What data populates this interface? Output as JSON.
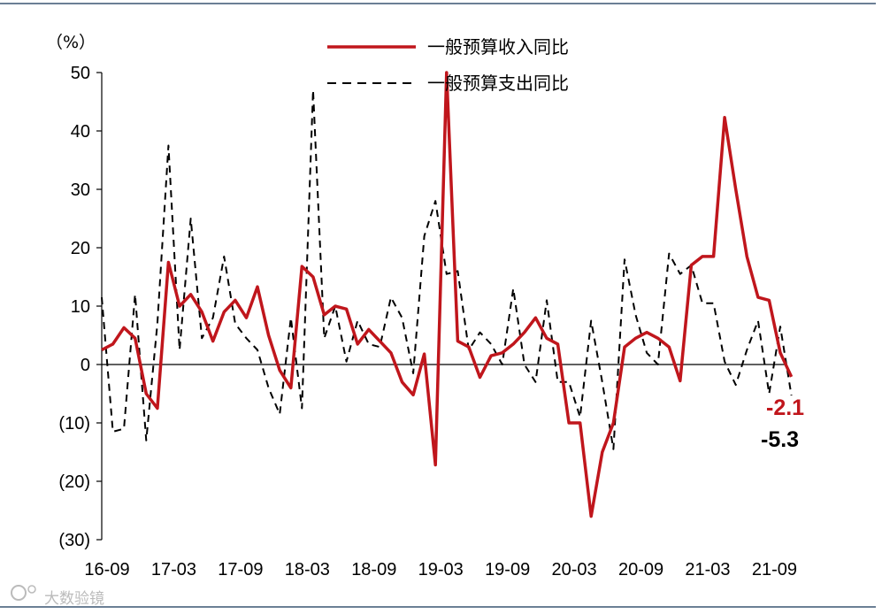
{
  "chart_data": {
    "type": "line",
    "unit_label": "（%）",
    "ylim": [
      -30,
      50
    ],
    "y_ticks": [
      50,
      40,
      30,
      20,
      10,
      0,
      -10,
      -20,
      -30
    ],
    "y_tick_labels": [
      "50",
      "40",
      "30",
      "20",
      "10",
      "0",
      "(10)",
      "(20)",
      "(30)"
    ],
    "x_ticks": [
      "16-09",
      "17-03",
      "17-09",
      "18-03",
      "18-09",
      "19-03",
      "19-09",
      "20-03",
      "20-09",
      "21-03",
      "21-09"
    ],
    "x_start": "16-09",
    "x_end": "21-10",
    "grid": false,
    "legend_position": "top",
    "series": [
      {
        "name": "一般预算收入同比",
        "style": "solid",
        "color": "#c0161c",
        "end_label": "-2.1",
        "points": [
          [
            "16-09",
            2.5
          ],
          [
            "16-10",
            3.5
          ],
          [
            "16-11",
            6.3
          ],
          [
            "16-12",
            4.5
          ],
          [
            "17-01",
            -5.0
          ],
          [
            "17-02",
            -7.5
          ],
          [
            "17-03",
            17.5
          ],
          [
            "17-04",
            10.0
          ],
          [
            "17-05",
            12.0
          ],
          [
            "17-06",
            9.0
          ],
          [
            "17-07",
            4.0
          ],
          [
            "17-08",
            9.0
          ],
          [
            "17-09",
            11.0
          ],
          [
            "17-10",
            8.0
          ],
          [
            "17-11",
            13.3
          ],
          [
            "17-12",
            5.0
          ],
          [
            "18-01",
            -1.0
          ],
          [
            "18-02",
            -4.0
          ],
          [
            "18-03",
            16.8
          ],
          [
            "18-04",
            15.0
          ],
          [
            "18-05",
            8.5
          ],
          [
            "18-06",
            10.0
          ],
          [
            "18-07",
            9.5
          ],
          [
            "18-08",
            3.5
          ],
          [
            "18-09",
            6.0
          ],
          [
            "18-10",
            4.0
          ],
          [
            "18-11",
            2.0
          ],
          [
            "18-12",
            -3.0
          ],
          [
            "19-01",
            -5.2
          ],
          [
            "19-02",
            1.8
          ],
          [
            "19-03",
            -17.2
          ],
          [
            "19-04",
            50.0
          ],
          [
            "19-05",
            4.0
          ],
          [
            "19-06",
            3.0
          ],
          [
            "19-07",
            -2.2
          ],
          [
            "19-08",
            1.5
          ],
          [
            "19-09",
            2.0
          ],
          [
            "19-10",
            3.5
          ],
          [
            "19-11",
            5.5
          ],
          [
            "19-12",
            8.0
          ],
          [
            "20-01",
            4.5
          ],
          [
            "20-02",
            3.5
          ],
          [
            "20-03",
            -10.0
          ],
          [
            "20-04",
            -10.0
          ],
          [
            "20-05",
            -26.0
          ],
          [
            "20-06",
            -15.0
          ],
          [
            "20-07",
            -10.0
          ],
          [
            "20-08",
            3.0
          ],
          [
            "20-09",
            4.5
          ],
          [
            "20-10",
            5.5
          ],
          [
            "20-11",
            4.5
          ],
          [
            "20-12",
            3.0
          ],
          [
            "21-01",
            -2.8
          ],
          [
            "21-02",
            17.0
          ],
          [
            "21-03",
            18.5
          ],
          [
            "21-04",
            18.5
          ],
          [
            "21-05",
            42.3
          ],
          [
            "21-06",
            30.0
          ],
          [
            "21-07",
            18.5
          ],
          [
            "21-08",
            11.5
          ],
          [
            "21-09",
            11.0
          ],
          [
            "21-10",
            2.0
          ],
          [
            "21-11",
            -2.1
          ]
        ]
      },
      {
        "name": "一般预算支出同比",
        "style": "dashed",
        "color": "#000000",
        "end_label": "-5.3",
        "points": [
          [
            "16-09",
            11.5
          ],
          [
            "16-10",
            -11.5
          ],
          [
            "16-11",
            -11.0
          ],
          [
            "16-12",
            12.0
          ],
          [
            "17-01",
            -13.0
          ],
          [
            "17-02",
            7.0
          ],
          [
            "17-03",
            37.5
          ],
          [
            "17-04",
            2.5
          ],
          [
            "17-05",
            25.0
          ],
          [
            "17-06",
            4.5
          ],
          [
            "17-07",
            8.0
          ],
          [
            "17-08",
            18.5
          ],
          [
            "17-09",
            7.0
          ],
          [
            "17-10",
            4.5
          ],
          [
            "17-11",
            2.5
          ],
          [
            "17-12",
            -4.0
          ],
          [
            "18-01",
            -8.5
          ],
          [
            "18-02",
            8.0
          ],
          [
            "18-03",
            -7.5
          ],
          [
            "18-04",
            47.0
          ],
          [
            "18-05",
            4.5
          ],
          [
            "18-06",
            10.0
          ],
          [
            "18-07",
            0.5
          ],
          [
            "18-08",
            7.5
          ],
          [
            "18-09",
            3.5
          ],
          [
            "18-10",
            3.0
          ],
          [
            "18-11",
            11.5
          ],
          [
            "18-12",
            8.0
          ],
          [
            "19-01",
            -1.5
          ],
          [
            "19-02",
            22.0
          ],
          [
            "19-03",
            28.0
          ],
          [
            "19-04",
            15.5
          ],
          [
            "19-05",
            16.0
          ],
          [
            "19-06",
            2.5
          ],
          [
            "19-07",
            5.5
          ],
          [
            "19-08",
            3.5
          ],
          [
            "19-09",
            0.0
          ],
          [
            "19-10",
            13.0
          ],
          [
            "19-11",
            0.0
          ],
          [
            "19-12",
            -3.0
          ],
          [
            "20-01",
            11.0
          ],
          [
            "20-02",
            -3.0
          ],
          [
            "20-03",
            -3.0
          ],
          [
            "20-04",
            -9.0
          ],
          [
            "20-05",
            7.5
          ],
          [
            "20-06",
            -3.0
          ],
          [
            "20-07",
            -14.5
          ],
          [
            "20-08",
            18.0
          ],
          [
            "20-09",
            8.5
          ],
          [
            "20-10",
            2.0
          ],
          [
            "20-11",
            0.0
          ],
          [
            "20-12",
            19.0
          ],
          [
            "21-01",
            15.5
          ],
          [
            "21-02",
            17.0
          ],
          [
            "21-03",
            10.5
          ],
          [
            "21-04",
            10.5
          ],
          [
            "21-05",
            0.5
          ],
          [
            "21-06",
            -3.5
          ],
          [
            "21-07",
            2.5
          ],
          [
            "21-08",
            7.5
          ],
          [
            "21-09",
            -5.0
          ],
          [
            "21-10",
            6.5
          ],
          [
            "21-11",
            -5.3
          ]
        ]
      }
    ]
  },
  "watermark": "大数验镜"
}
